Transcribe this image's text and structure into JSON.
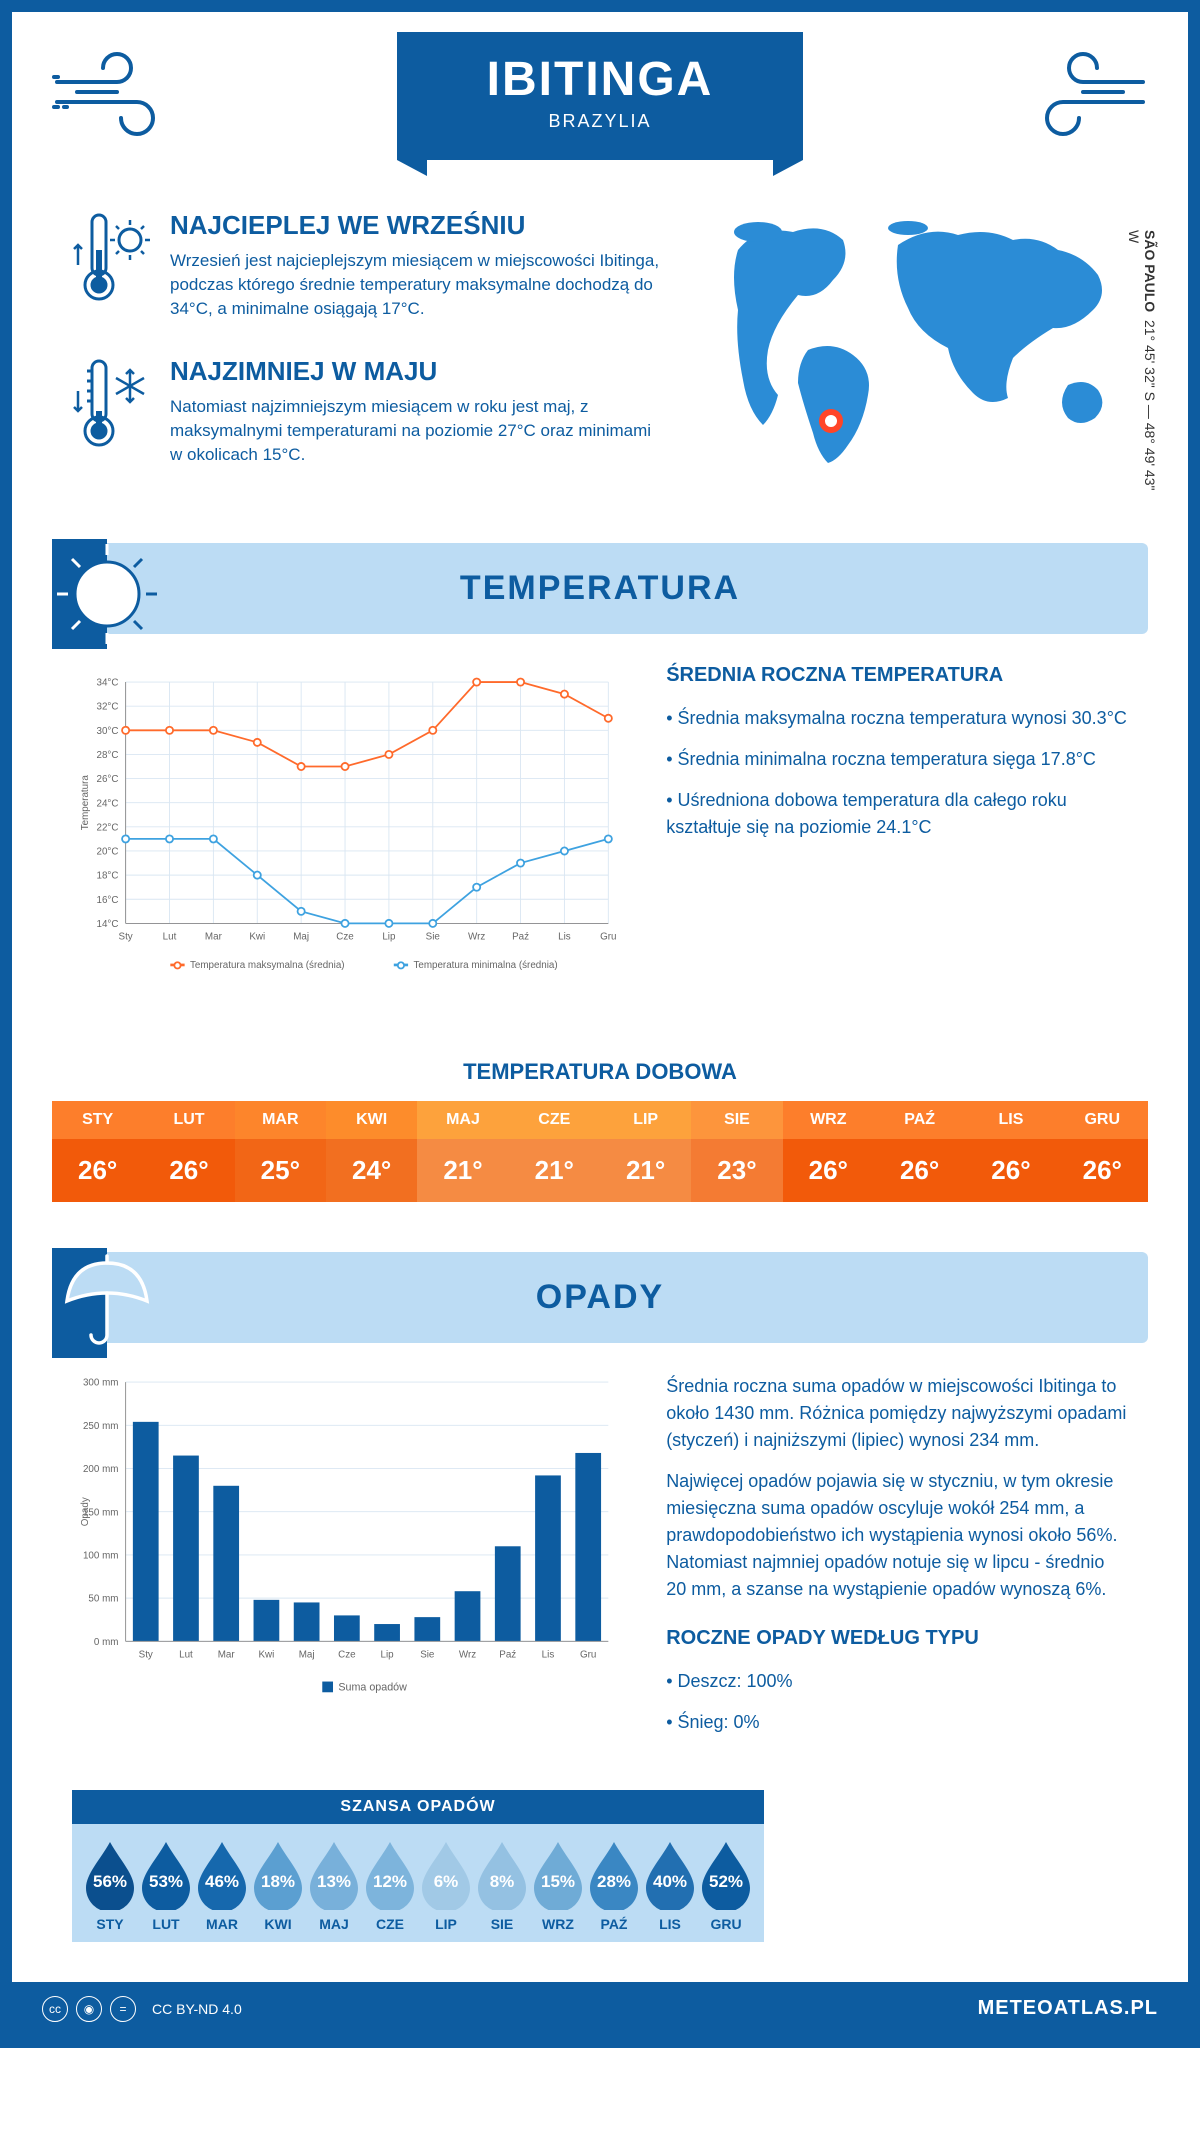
{
  "header": {
    "city": "IBITINGA",
    "country": "BRAZYLIA"
  },
  "coords": {
    "region": "SÃO PAULO",
    "lat_lon": "21° 45' 32\" S — 48° 49' 43\" W"
  },
  "marker": {
    "left_pct": 31,
    "top_pct": 72
  },
  "facts": {
    "warm": {
      "title": "NAJCIEPLEJ WE WRZEŚNIU",
      "text": "Wrzesień jest najcieplejszym miesiącem w miejscowości Ibitinga, podczas którego średnie temperatury maksymalne dochodzą do 34°C, a minimalne osiągają 17°C."
    },
    "cold": {
      "title": "NAJZIMNIEJ W MAJU",
      "text": "Natomiast najzimniejszym miesiącem w roku jest maj, z maksymalnymi temperaturami na poziomie 27°C oraz minimami w okolicach 15°C."
    }
  },
  "sections": {
    "temperature": "TEMPERATURA",
    "precipitation": "OPADY"
  },
  "temp_chart": {
    "type": "line",
    "months": [
      "Sty",
      "Lut",
      "Mar",
      "Kwi",
      "Maj",
      "Cze",
      "Lip",
      "Sie",
      "Wrz",
      "Paź",
      "Lis",
      "Gru"
    ],
    "series": {
      "max": {
        "label": "Temperatura maksymalna (średnia)",
        "values": [
          30,
          30,
          30,
          29,
          27,
          27,
          28,
          30,
          34,
          34,
          33,
          31
        ],
        "color": "#ff6a2b"
      },
      "min": {
        "label": "Temperatura minimalna (średnia)",
        "values": [
          21,
          21,
          21,
          18,
          15,
          14,
          14,
          14,
          17,
          19,
          20,
          21
        ],
        "color": "#3ea2e0"
      }
    },
    "ymin": 14,
    "ymax": 34,
    "ytick_step": 2,
    "ylabel": "Temperatura",
    "grid_color": "#d9e6f2",
    "axis_color": "#888",
    "label_fontsize": 11
  },
  "temp_summary": {
    "title": "ŚREDNIA ROCZNA TEMPERATURA",
    "items": [
      "• Średnia maksymalna roczna temperatura wynosi 30.3°C",
      "• Średnia minimalna roczna temperatura sięga 17.8°C",
      "• Uśredniona dobowa temperatura dla całego roku kształtuje się na poziomie 24.1°C"
    ]
  },
  "daily_temp_table": {
    "title": "TEMPERATURA DOBOWA",
    "months": [
      "STY",
      "LUT",
      "MAR",
      "KWI",
      "MAJ",
      "CZE",
      "LIP",
      "SIE",
      "WRZ",
      "PAŹ",
      "LIS",
      "GRU"
    ],
    "values": [
      "26°",
      "26°",
      "25°",
      "24°",
      "21°",
      "21°",
      "21°",
      "23°",
      "26°",
      "26°",
      "26°",
      "26°"
    ],
    "header_colors": [
      "#fd7e2b",
      "#fd7e2b",
      "#fd852b",
      "#fd8c2b",
      "#fda23c",
      "#fda23c",
      "#fda23c",
      "#fd953c",
      "#fd7e2b",
      "#fd7e2b",
      "#fd7e2b",
      "#fd7e2b"
    ],
    "value_colors": [
      "#f25a0a",
      "#f25a0a",
      "#f26616",
      "#f26f20",
      "#f58b43",
      "#f58b43",
      "#f58b43",
      "#f47b33",
      "#f25a0a",
      "#f25a0a",
      "#f25a0a",
      "#f25a0a"
    ]
  },
  "rain_chart": {
    "type": "bar",
    "months": [
      "Sty",
      "Lut",
      "Mar",
      "Kwi",
      "Maj",
      "Cze",
      "Lip",
      "Sie",
      "Wrz",
      "Paź",
      "Lis",
      "Gru"
    ],
    "values": [
      254,
      215,
      180,
      48,
      45,
      30,
      20,
      28,
      58,
      110,
      192,
      218
    ],
    "bar_color": "#0d5ca0",
    "ymin": 0,
    "ymax": 300,
    "ytick_step": 50,
    "ylabel": "Opady",
    "legend": "Suma opadów",
    "grid_color": "#d9e6f2",
    "axis_color": "#888",
    "label_fontsize": 11
  },
  "rain_summary": {
    "para1": "Średnia roczna suma opadów w miejscowości Ibitinga to około 1430 mm. Różnica pomiędzy najwyższymi opadami (styczeń) i najniższymi (lipiec) wynosi 234 mm.",
    "para2": "Najwięcej opadów pojawia się w styczniu, w tym okresie miesięczna suma opadów oscyluje wokół 254 mm, a prawdopodobieństwo ich wystąpienia wynosi około 56%. Natomiast najmniej opadów notuje się w lipcu - średnio 20 mm, a szanse na wystąpienie opadów wynoszą 6%.",
    "type_title": "ROCZNE OPADY WEDŁUG TYPU",
    "types": [
      "• Deszcz: 100%",
      "• Śnieg: 0%"
    ]
  },
  "rain_chance": {
    "title": "SZANSA OPADÓW",
    "months": [
      "STY",
      "LUT",
      "MAR",
      "KWI",
      "MAJ",
      "CZE",
      "LIP",
      "SIE",
      "WRZ",
      "PAŹ",
      "LIS",
      "GRU"
    ],
    "values": [
      "56%",
      "53%",
      "46%",
      "18%",
      "13%",
      "12%",
      "6%",
      "8%",
      "15%",
      "28%",
      "40%",
      "52%"
    ],
    "colors": [
      "#0b4f8e",
      "#0d5ca0",
      "#1668ad",
      "#5b9fd1",
      "#78b0da",
      "#7db4dc",
      "#a1c9e6",
      "#94c1e2",
      "#6fabd6",
      "#3a87c3",
      "#226fb1",
      "#0d5ca0"
    ]
  },
  "footer": {
    "license": "CC BY-ND 4.0",
    "site": "METEOATLAS.PL"
  },
  "colors": {
    "primary": "#0d5ca0",
    "light": "#bcdcf4",
    "marker": "#ff4528"
  }
}
